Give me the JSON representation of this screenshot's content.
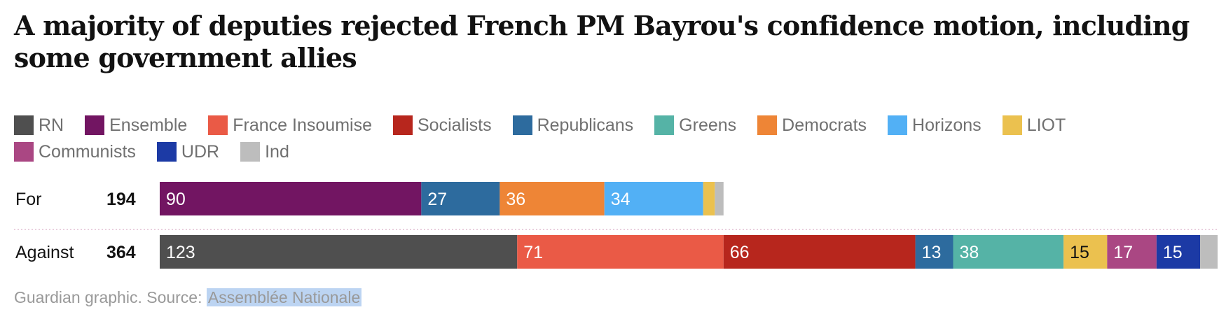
{
  "title": "A majority of deputies rejected French PM Bayrou's confidence motion, including some government allies",
  "legend": [
    {
      "label": "RN",
      "color": "#4f4f4f"
    },
    {
      "label": "Ensemble",
      "color": "#721562"
    },
    {
      "label": "France Insoumise",
      "color": "#ea5a46"
    },
    {
      "label": "Socialists",
      "color": "#b7261d"
    },
    {
      "label": "Republicans",
      "color": "#2d6b9e"
    },
    {
      "label": "Greens",
      "color": "#55b3a6"
    },
    {
      "label": "Democrats",
      "color": "#ee8536"
    },
    {
      "label": "Horizons",
      "color": "#52b0f5"
    },
    {
      "label": "LIOT",
      "color": "#ebc14f"
    },
    {
      "label": "Communists",
      "color": "#aa4783"
    },
    {
      "label": "UDR",
      "color": "#1c3aa5"
    },
    {
      "label": "Ind",
      "color": "#bdbdbd"
    }
  ],
  "source": {
    "prefix": "Guardian graphic. Source: ",
    "link": "Assemblée Nationale"
  },
  "chart_data": {
    "type": "bar",
    "stacked": true,
    "orientation": "horizontal",
    "categories": [
      "For",
      "Against"
    ],
    "totals": [
      194,
      364
    ],
    "xlim": [
      0,
      364
    ],
    "series": [
      {
        "name": "RN",
        "values": [
          0,
          123
        ],
        "color": "#4f4f4f"
      },
      {
        "name": "Ensemble",
        "values": [
          90,
          0
        ],
        "color": "#721562"
      },
      {
        "name": "France Insoumise",
        "values": [
          0,
          71
        ],
        "color": "#ea5a46"
      },
      {
        "name": "Socialists",
        "values": [
          0,
          66
        ],
        "color": "#b7261d"
      },
      {
        "name": "Republicans",
        "values": [
          27,
          13
        ],
        "color": "#2d6b9e"
      },
      {
        "name": "Greens",
        "values": [
          0,
          38
        ],
        "color": "#55b3a6"
      },
      {
        "name": "Democrats",
        "values": [
          36,
          0
        ],
        "color": "#ee8536"
      },
      {
        "name": "Horizons",
        "values": [
          34,
          0
        ],
        "color": "#52b0f5"
      },
      {
        "name": "LIOT",
        "values": [
          4,
          15
        ],
        "color": "#ebc14f"
      },
      {
        "name": "Communists",
        "values": [
          0,
          17
        ],
        "color": "#aa4783"
      },
      {
        "name": "UDR",
        "values": [
          0,
          15
        ],
        "color": "#1c3aa5"
      },
      {
        "name": "Ind",
        "values": [
          3,
          6
        ],
        "color": "#bdbdbd"
      }
    ],
    "label_min_value": 10,
    "label_text_colors": {
      "default": "#ffffff",
      "LIOT": "#121212"
    }
  }
}
